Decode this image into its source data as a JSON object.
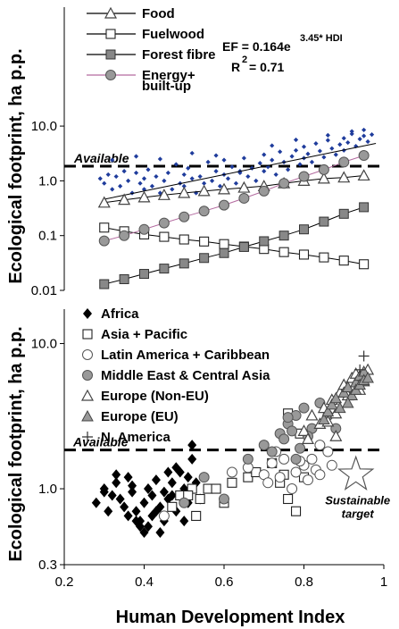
{
  "chart_data": [
    {
      "type": "scatter",
      "title": "",
      "xlabel": "Human Development Index",
      "ylabel": "Ecological footprint, ha p.p.",
      "xlim": [
        0.2,
        1.0
      ],
      "ylim": [
        0.01,
        15
      ],
      "yscale": "log",
      "yticks": [
        "0.01",
        "0.1",
        "1.0",
        "10.0"
      ],
      "annotations": {
        "equation": "EF = 0.164e",
        "exponent": "3.45* HDI",
        "r2": "R",
        "r2_sup": "2",
        "r2_value": " = 0.71",
        "available": "Available"
      },
      "available_level": 1.85,
      "trend": {
        "name": "",
        "a": 0.164,
        "b": 3.45,
        "x_range": [
          0.3,
          0.98
        ]
      },
      "series": [
        {
          "name": "Food",
          "marker": "triangle-open",
          "x": [
            0.3,
            0.35,
            0.4,
            0.45,
            0.5,
            0.55,
            0.6,
            0.65,
            0.7,
            0.75,
            0.8,
            0.85,
            0.9,
            0.95
          ],
          "y": [
            0.4,
            0.45,
            0.5,
            0.55,
            0.6,
            0.65,
            0.7,
            0.75,
            0.8,
            0.9,
            1.0,
            1.1,
            1.15,
            1.25
          ]
        },
        {
          "name": "Fuelwood",
          "marker": "square-open",
          "x": [
            0.3,
            0.35,
            0.4,
            0.45,
            0.5,
            0.55,
            0.6,
            0.65,
            0.7,
            0.75,
            0.8,
            0.85,
            0.9,
            0.95
          ],
          "y": [
            0.14,
            0.12,
            0.105,
            0.095,
            0.085,
            0.078,
            0.07,
            0.063,
            0.057,
            0.05,
            0.045,
            0.04,
            0.035,
            0.03
          ]
        },
        {
          "name": "Forest fibre",
          "marker": "square-filled",
          "x": [
            0.3,
            0.35,
            0.4,
            0.45,
            0.5,
            0.55,
            0.6,
            0.65,
            0.7,
            0.75,
            0.8,
            0.85,
            0.9,
            0.95
          ],
          "y": [
            0.013,
            0.016,
            0.02,
            0.025,
            0.031,
            0.039,
            0.048,
            0.062,
            0.079,
            0.1,
            0.13,
            0.18,
            0.25,
            0.33
          ]
        },
        {
          "name": "Energy+",
          "name_line2": "built-up",
          "marker": "circle-filled",
          "x": [
            0.3,
            0.35,
            0.4,
            0.45,
            0.5,
            0.55,
            0.6,
            0.65,
            0.7,
            0.75,
            0.8,
            0.85,
            0.9,
            0.95
          ],
          "y": [
            0.08,
            0.1,
            0.13,
            0.17,
            0.22,
            0.28,
            0.36,
            0.48,
            0.65,
            0.9,
            1.2,
            1.6,
            2.2,
            2.9
          ]
        },
        {
          "name": "",
          "marker": "dot",
          "x": [
            0.29,
            0.3,
            0.31,
            0.32,
            0.33,
            0.34,
            0.35,
            0.36,
            0.37,
            0.38,
            0.39,
            0.4,
            0.4,
            0.41,
            0.42,
            0.43,
            0.44,
            0.45,
            0.46,
            0.47,
            0.48,
            0.49,
            0.5,
            0.5,
            0.51,
            0.52,
            0.53,
            0.54,
            0.55,
            0.56,
            0.57,
            0.58,
            0.59,
            0.6,
            0.6,
            0.61,
            0.62,
            0.63,
            0.64,
            0.65,
            0.66,
            0.67,
            0.68,
            0.69,
            0.7,
            0.7,
            0.71,
            0.72,
            0.73,
            0.74,
            0.75,
            0.76,
            0.77,
            0.78,
            0.79,
            0.8,
            0.8,
            0.81,
            0.82,
            0.83,
            0.84,
            0.85,
            0.86,
            0.87,
            0.88,
            0.89,
            0.9,
            0.9,
            0.91,
            0.92,
            0.93,
            0.94,
            0.95,
            0.95,
            0.96,
            0.97,
            0.32,
            0.38,
            0.44,
            0.52,
            0.58,
            0.64,
            0.72,
            0.78,
            0.86,
            0.92
          ],
          "y": [
            1.1,
            0.9,
            1.3,
            0.7,
            1.2,
            0.8,
            1.5,
            1.0,
            0.6,
            1.4,
            0.9,
            1.1,
            0.7,
            1.6,
            0.8,
            1.2,
            0.6,
            1.0,
            1.4,
            0.7,
            2.0,
            0.9,
            1.3,
            0.8,
            1.7,
            1.1,
            0.6,
            1.2,
            0.9,
            2.2,
            1.0,
            1.5,
            0.8,
            1.3,
            2.4,
            1.1,
            1.8,
            0.9,
            1.4,
            2.6,
            1.2,
            1.7,
            1.0,
            2.1,
            1.5,
            3.0,
            1.8,
            2.4,
            1.3,
            3.4,
            2.2,
            1.6,
            2.8,
            3.6,
            2.0,
            2.6,
            4.2,
            3.1,
            2.2,
            4.8,
            3.5,
            2.7,
            5.5,
            3.9,
            3.0,
            4.6,
            6.0,
            3.6,
            5.0,
            7.2,
            4.3,
            5.8,
            6.6,
            8.5,
            5.2,
            7.0,
            2.4,
            2.8,
            2.5,
            3.2,
            2.9,
            1.5,
            4.4,
            5.6,
            6.8,
            8.0
          ]
        }
      ]
    },
    {
      "type": "scatter",
      "title": "",
      "xlabel": "Human Development Index",
      "ylabel": "Ecological footprint, ha p.p.",
      "xlim": [
        0.2,
        1.0
      ],
      "ylim": [
        0.3,
        15
      ],
      "yscale": "log",
      "xticks": [
        "0.2",
        "0.4",
        "0.6",
        "0.8",
        "1"
      ],
      "yticks": [
        "0.3",
        "1.0",
        "10.0"
      ],
      "annotations": {
        "available": "Available",
        "target_line1": "Sustainable",
        "target_line2": "target"
      },
      "available_level": 1.85,
      "target": {
        "x": 0.93,
        "y": 1.25
      },
      "series": [
        {
          "name": "Africa",
          "marker": "diamond-filled",
          "x": [
            0.28,
            0.3,
            0.31,
            0.32,
            0.33,
            0.34,
            0.35,
            0.36,
            0.37,
            0.38,
            0.38,
            0.39,
            0.4,
            0.4,
            0.41,
            0.42,
            0.42,
            0.43,
            0.44,
            0.45,
            0.45,
            0.46,
            0.46,
            0.47,
            0.48,
            0.48,
            0.49,
            0.5,
            0.5,
            0.51,
            0.51,
            0.52,
            0.53,
            0.33,
            0.36,
            0.44,
            0.41,
            0.47,
            0.49,
            0.39,
            0.52,
            0.54,
            0.43,
            0.3,
            0.37
          ],
          "y": [
            0.8,
            1.0,
            0.7,
            0.9,
            1.1,
            0.85,
            0.75,
            1.2,
            0.95,
            0.6,
            0.7,
            0.55,
            0.5,
            0.8,
            1.0,
            0.9,
            0.65,
            1.15,
            0.75,
            0.95,
            0.6,
            1.3,
            0.85,
            1.1,
            0.7,
            1.4,
            0.9,
            1.0,
            0.6,
            1.2,
            0.8,
            1.6,
            1.1,
            1.25,
            0.65,
            0.5,
            0.55,
            0.9,
            1.3,
            0.6,
            2.0,
            0.85,
            0.7,
            0.95,
            1.05
          ]
        },
        {
          "name": "Asia + Pacific",
          "marker": "square-open",
          "x": [
            0.47,
            0.49,
            0.52,
            0.54,
            0.56,
            0.58,
            0.6,
            0.62,
            0.66,
            0.68,
            0.72,
            0.74,
            0.75,
            0.76,
            0.78,
            0.8,
            0.76,
            0.79,
            0.51,
            0.53
          ],
          "y": [
            0.75,
            0.9,
            1.0,
            0.85,
            1.0,
            1.0,
            0.8,
            1.1,
            1.2,
            1.3,
            1.5,
            1.1,
            1.25,
            0.85,
            0.7,
            1.2,
            3.3,
            2.4,
            0.9,
            0.65
          ]
        },
        {
          "name": "Latin America + Caribbean",
          "marker": "circle-open",
          "x": [
            0.45,
            0.62,
            0.66,
            0.7,
            0.71,
            0.72,
            0.74,
            0.75,
            0.77,
            0.78,
            0.8,
            0.81,
            0.82,
            0.83,
            0.84,
            0.86,
            0.84,
            0.87,
            0.73,
            0.79
          ],
          "y": [
            0.65,
            1.3,
            1.4,
            1.25,
            1.1,
            1.5,
            1.2,
            1.6,
            1.0,
            1.3,
            1.45,
            1.15,
            1.6,
            1.35,
            2.0,
            1.8,
            1.25,
            1.45,
            1.8,
            1.55
          ]
        },
        {
          "name": "Middle East & Central Asia",
          "marker": "circle-filled",
          "x": [
            0.5,
            0.55,
            0.6,
            0.66,
            0.7,
            0.72,
            0.74,
            0.75,
            0.76,
            0.77,
            0.78,
            0.79,
            0.8,
            0.82,
            0.84,
            0.86,
            0.78,
            0.81,
            0.76,
            0.88
          ],
          "y": [
            0.8,
            1.2,
            0.85,
            1.6,
            2.0,
            1.8,
            2.4,
            2.2,
            2.8,
            2.5,
            3.2,
            1.9,
            3.6,
            2.6,
            3.9,
            3.2,
            1.6,
            2.3,
            3.1,
            2.6
          ]
        },
        {
          "name": "Europe (Non-EU)",
          "marker": "triangle-open",
          "x": [
            0.8,
            0.81,
            0.82,
            0.84,
            0.85,
            0.86,
            0.87,
            0.88,
            0.89,
            0.9,
            0.91,
            0.92,
            0.93,
            0.95,
            0.96,
            0.94,
            0.88
          ],
          "y": [
            2.5,
            2.2,
            3.2,
            2.8,
            3.6,
            2.9,
            4.1,
            3.3,
            4.6,
            5.2,
            4.4,
            5.8,
            6.2,
            5.5,
            6.6,
            4.8,
            2.3
          ]
        },
        {
          "name": "Europe (EU)",
          "marker": "triangle-filled",
          "x": [
            0.85,
            0.86,
            0.87,
            0.88,
            0.89,
            0.9,
            0.91,
            0.92,
            0.93,
            0.93,
            0.94,
            0.94,
            0.95,
            0.95,
            0.96,
            0.91
          ],
          "y": [
            3.0,
            3.4,
            3.8,
            4.2,
            3.6,
            4.6,
            5.0,
            4.4,
            5.4,
            4.8,
            6.0,
            5.2,
            6.4,
            5.6,
            5.8,
            3.9
          ]
        },
        {
          "name": "N. America",
          "marker": "plus",
          "x": [
            0.94,
            0.95
          ],
          "y": [
            6.6,
            8.2
          ]
        }
      ]
    }
  ]
}
